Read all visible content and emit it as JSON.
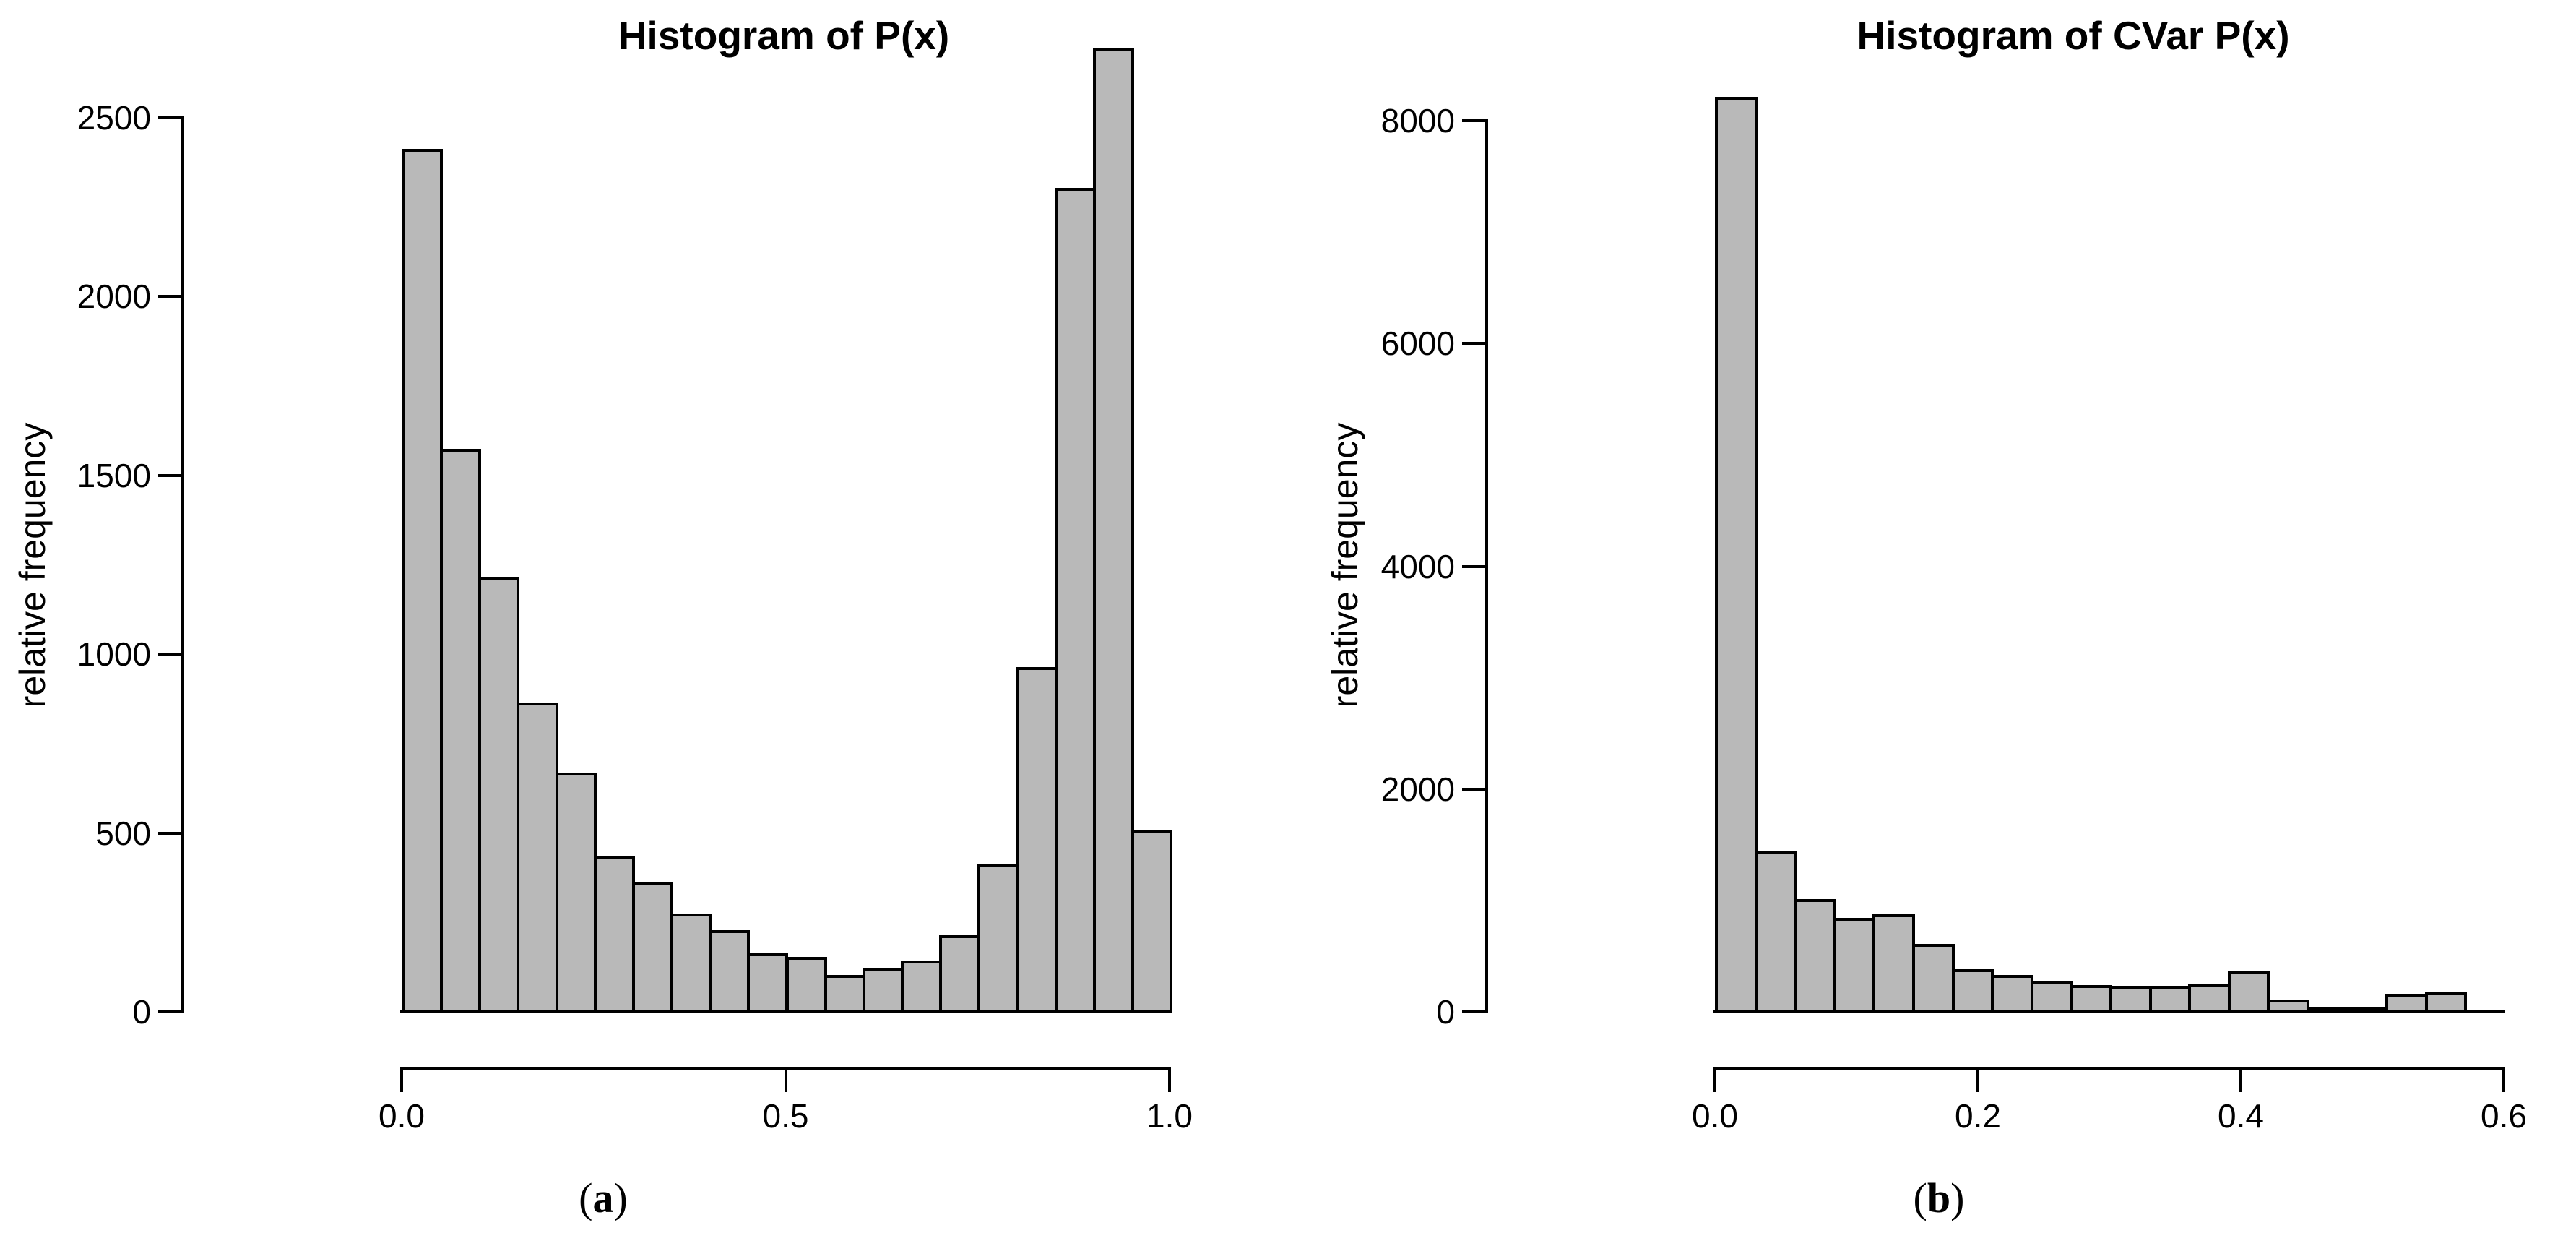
{
  "figure": {
    "background": "#ffffff",
    "text_color": "#000000"
  },
  "chart_data": [
    {
      "type": "bar",
      "title": "Histogram of P(x)",
      "xlabel": "",
      "ylabel": "relative frequency",
      "caption": {
        "prefix": "(",
        "label": "a",
        "suffix": ")"
      },
      "bins": {
        "start": 0.0,
        "width": 0.05,
        "count": 20
      },
      "values": [
        2410,
        1570,
        1210,
        860,
        665,
        430,
        360,
        270,
        225,
        160,
        150,
        100,
        120,
        140,
        210,
        410,
        960,
        2300,
        2690,
        505
      ],
      "x_ticks": {
        "values": [
          0.0,
          0.5,
          1.0
        ],
        "labels": [
          "0.0",
          "0.5",
          "1.0"
        ]
      },
      "y_ticks": {
        "values": [
          0,
          500,
          1000,
          1500,
          2000,
          2500
        ],
        "labels": [
          "0",
          "500",
          "1000",
          "1500",
          "2000",
          "2500"
        ]
      },
      "xlim": [
        0.0,
        1.0
      ],
      "ylim": [
        0,
        2500
      ],
      "grid": false,
      "legend": "none",
      "bar_fill": "#b9b9b9",
      "bar_border": "#000000",
      "axis_color": "#000000"
    },
    {
      "type": "bar",
      "title": "Histogram of CVar P(x)",
      "xlabel": "",
      "ylabel": "relative frequency",
      "caption": {
        "prefix": "(",
        "label": "b",
        "suffix": ")"
      },
      "bins": {
        "start": 0.0,
        "width": 0.03,
        "count": 19
      },
      "values": [
        8200,
        1430,
        1000,
        830,
        860,
        600,
        370,
        320,
        260,
        230,
        220,
        220,
        240,
        350,
        100,
        30,
        25,
        140,
        165
      ],
      "x_ticks": {
        "values": [
          0.0,
          0.2,
          0.4,
          0.6
        ],
        "labels": [
          "0.0",
          "0.2",
          "0.4",
          "0.6"
        ]
      },
      "y_ticks": {
        "values": [
          0,
          2000,
          4000,
          6000,
          8000
        ],
        "labels": [
          "0",
          "2000",
          "4000",
          "6000",
          "8000"
        ]
      },
      "xlim": [
        0.0,
        0.6
      ],
      "ylim": [
        0,
        8000
      ],
      "grid": false,
      "legend": "none",
      "bar_fill": "#b9b9b9",
      "bar_border": "#000000",
      "axis_color": "#000000"
    }
  ]
}
